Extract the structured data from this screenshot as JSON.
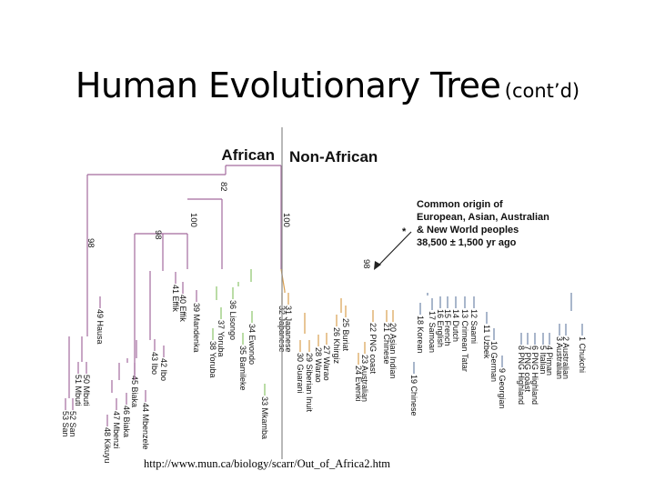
{
  "slide": {
    "title": "Human Evolutionary Tree",
    "title_suffix": "(cont’d)",
    "source_url": "http://www.mun.ca/biology/scarr/Out_of_Africa2.htm"
  },
  "tree": {
    "african_header": "African",
    "non_african_header": "Non-African",
    "annotation_lines": [
      "Common origin of",
      "European, Asian, Australian",
      "& New World peoples"
    ],
    "annotation_date": "38,500 ± 1,500 yr ago",
    "asterisk": "*",
    "bootstrap_values": [
      "82",
      "98",
      "98",
      "100",
      "100",
      "98"
    ],
    "colors": {
      "purple": "#a36b9e",
      "green": "#8cc46a",
      "orange": "#d9a050",
      "blue": "#6f86a8",
      "divider": "#888888"
    },
    "leaves": [
      "53 San",
      "52 San",
      "51 Mbuti",
      "50 Mbuti",
      "49 Hausa",
      "48 Kikuyu",
      "47 Mbenzi",
      "46 Biaka",
      "45 Biaka",
      "44 Mbenzele",
      "43 Ibo",
      "42 Ibo",
      "41 Effik",
      "40 Effik",
      "39 Mandenka",
      "38 Yoruba",
      "37 Yoruba",
      "36 Lisongo",
      "35 Bamileke",
      "34 Ewondo",
      "33 Mkamba",
      "32 Japanese",
      "31 Japanese",
      "30 Guarani",
      "29 Siberian Inuit",
      "28 Warao",
      "27 Warao",
      "26 Khirgiz",
      "25 Buriat",
      "24 Evenki",
      "23 Australian",
      "22 PNG coast",
      "21 Chinese",
      "20 Asian Indian",
      "19 Chinese",
      "18 Korean",
      "17 Samoan",
      "16 English",
      "15 French",
      "14 Dutch",
      "13 Crimean Tatar",
      "12 Saami",
      "11 Uzbek",
      "10 German",
      "9 Georgian",
      "8 PNG Highland",
      "7 PNG coast",
      "6 PNG Highland",
      "5 Italian",
      "4 Piman",
      "3 Australian",
      "2 Australian",
      "1 Chukchi"
    ]
  }
}
